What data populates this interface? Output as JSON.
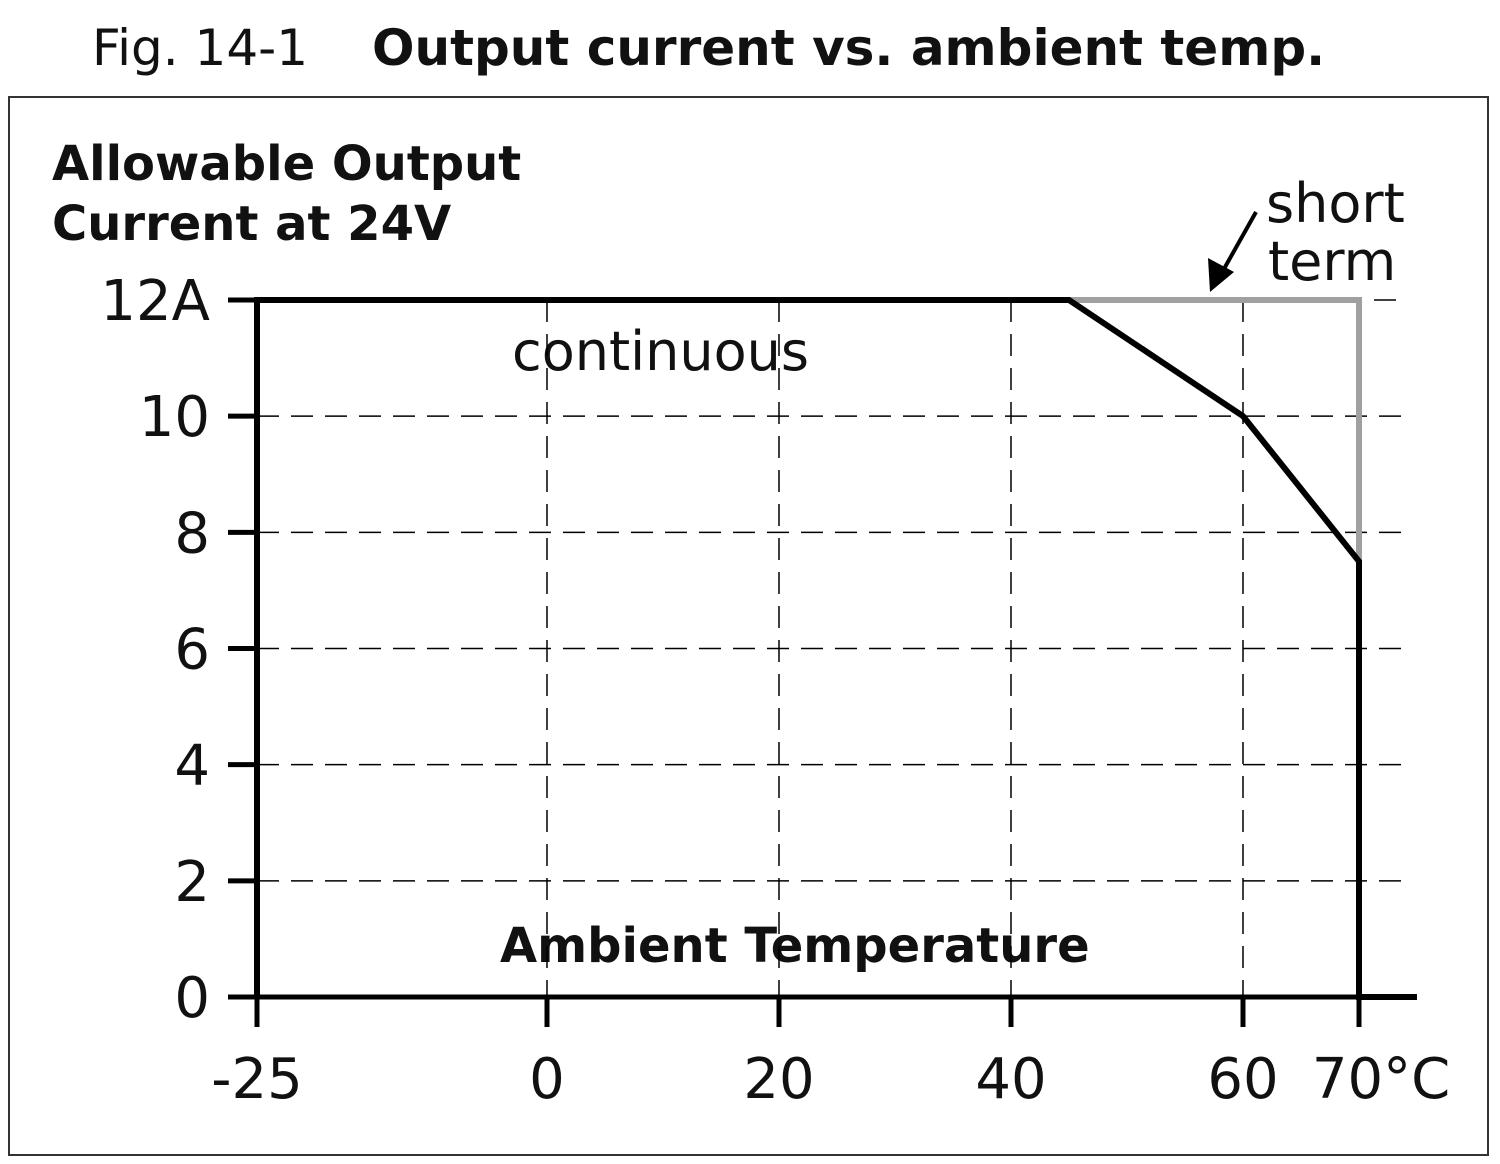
{
  "figure_label": "Fig. 14-1",
  "chart_data": {
    "type": "line",
    "title": "Output current vs. ambient temp.",
    "ylabel_line1": "Allowable Output",
    "ylabel_line2": "Current at 24V",
    "xlabel": "Ambient Temperature",
    "xlim": [
      -25,
      75
    ],
    "ylim": [
      0,
      12
    ],
    "x_ticks": [
      -25,
      0,
      20,
      40,
      60,
      70
    ],
    "x_tick_labels": [
      "-25",
      "0",
      "20",
      "40",
      "60",
      "70°C"
    ],
    "y_ticks": [
      0,
      2,
      4,
      6,
      8,
      10,
      12
    ],
    "y_tick_labels": [
      "0",
      "2",
      "4",
      "6",
      "8",
      "10",
      "12A"
    ],
    "grid": true,
    "series": [
      {
        "name": "continuous",
        "color": "#000000",
        "points": [
          [
            -25,
            0
          ],
          [
            -25,
            12
          ],
          [
            45,
            12
          ],
          [
            60,
            10
          ],
          [
            70,
            7.5
          ],
          [
            70,
            0
          ],
          [
            75,
            0
          ]
        ]
      },
      {
        "name": "short term",
        "color": "#a0a0a0",
        "points": [
          [
            45,
            12
          ],
          [
            70,
            12
          ],
          [
            70,
            7.5
          ]
        ]
      }
    ],
    "annotations": {
      "continuous": "continuous",
      "short_line1": "short",
      "short_line2": "term"
    }
  }
}
